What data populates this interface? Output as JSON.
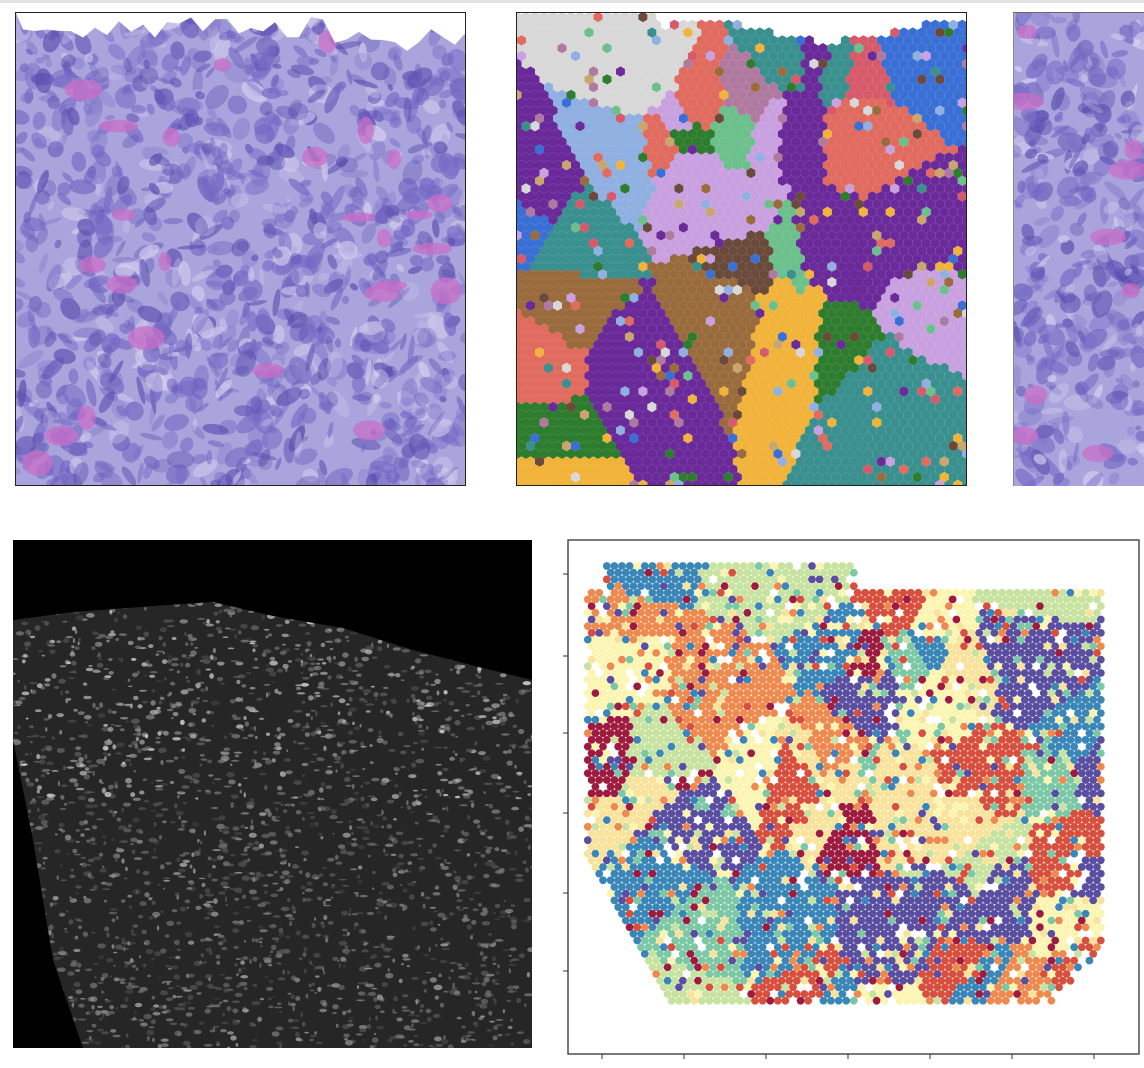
{
  "panels": {
    "he_left": {
      "kind": "H&E stained tissue image"
    },
    "cluster_map": {
      "kind": "spatial cluster map"
    },
    "he_right": {
      "kind": "H&E stained tissue image (cropped)"
    },
    "fluorescence": {
      "kind": "grayscale fluorescence tissue image"
    },
    "spot_plot": {
      "kind": "spatial spot scatter plot"
    }
  },
  "colors": {
    "he_background": "#a9a4dc",
    "he_dark": "#5b4fb0",
    "he_pink": "#c86fc8",
    "cluster_palette": [
      "#e06b5e",
      "#6a4a3a",
      "#c9a0e0",
      "#3a6fd6",
      "#6cc08c",
      "#f2b33b",
      "#9a6b3c",
      "#6a2a9a",
      "#2e7d2e",
      "#d8d8d8",
      "#c9a66b",
      "#3a8f8f",
      "#d65a6a",
      "#8fb0e0",
      "#b07aa0"
    ],
    "spot_palette": [
      "#9e1b3f",
      "#d84f3e",
      "#ef8a4f",
      "#f9e29a",
      "#fbf5b0",
      "#c8e3a0",
      "#7cc8a5",
      "#3b86b8",
      "#5a4ea0"
    ]
  }
}
